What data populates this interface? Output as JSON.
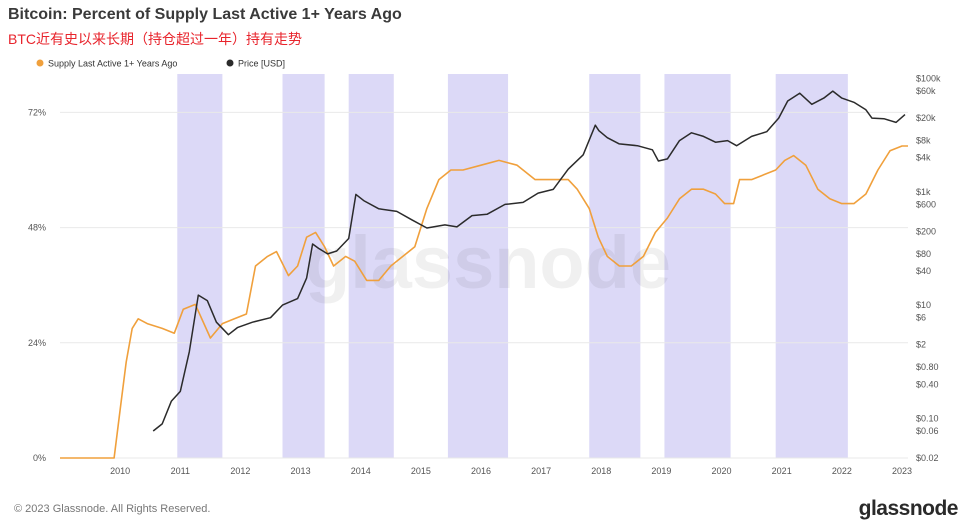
{
  "title": "Bitcoin: Percent of Supply Last Active 1+ Years Ago",
  "subtitle": "BTC近有史以来长期（持仓超过一年）持有走势",
  "footer": "© 2023 Glassnode. All Rights Reserved.",
  "brand": "glassnode",
  "watermark": "glassnode",
  "colors": {
    "supply": "#f0a03c",
    "price": "#2b2b2b",
    "band": "#dcd9f7",
    "grid": "#e9e9e9"
  },
  "chart_data": {
    "type": "line",
    "title": "Bitcoin: Percent of Supply Last Active 1+ Years Ago",
    "x_ticks": [
      "2010",
      "2011",
      "2012",
      "2013",
      "2014",
      "2015",
      "2016",
      "2017",
      "2018",
      "2019",
      "2020",
      "2021",
      "2022",
      "2023"
    ],
    "x_range": [
      2009.0,
      2023.1
    ],
    "y_left": {
      "ticks": [
        "0%",
        "24%",
        "48%",
        "72%"
      ],
      "tick_values": [
        0,
        24,
        48,
        72
      ],
      "range": [
        0,
        80
      ]
    },
    "y_right": {
      "scale": "log",
      "ticks": [
        "$0.02",
        "$0.06",
        "$0.10",
        "$0.40",
        "$0.80",
        "$2",
        "$6",
        "$10",
        "$40",
        "$80",
        "$200",
        "$600",
        "$1k",
        "$4k",
        "$8k",
        "$20k",
        "$60k",
        "$100k"
      ],
      "tick_values": [
        0.02,
        0.06,
        0.1,
        0.4,
        0.8,
        2,
        6,
        10,
        40,
        80,
        200,
        600,
        1000,
        4000,
        8000,
        20000,
        60000,
        100000
      ],
      "range": [
        0.02,
        120000
      ]
    },
    "bands": [
      [
        2010.95,
        2011.7
      ],
      [
        2012.7,
        2013.4
      ],
      [
        2013.8,
        2014.55
      ],
      [
        2015.45,
        2016.45
      ],
      [
        2017.8,
        2018.65
      ],
      [
        2019.05,
        2020.15
      ],
      [
        2020.9,
        2022.1
      ]
    ],
    "legend": [
      "Supply Last Active 1+ Years Ago",
      "Price [USD]"
    ],
    "legend_position": "top-left",
    "grid": "horizontal",
    "series": [
      {
        "name": "Supply Last Active 1+ Years Ago",
        "axis": "left",
        "x": [
          2009.0,
          2009.9,
          2010.0,
          2010.1,
          2010.2,
          2010.3,
          2010.45,
          2010.7,
          2010.9,
          2011.05,
          2011.25,
          2011.5,
          2011.7,
          2011.9,
          2012.1,
          2012.25,
          2012.45,
          2012.6,
          2012.8,
          2012.95,
          2013.1,
          2013.25,
          2013.4,
          2013.55,
          2013.75,
          2013.9,
          2014.1,
          2014.3,
          2014.5,
          2014.7,
          2014.9,
          2015.1,
          2015.3,
          2015.5,
          2015.7,
          2016.0,
          2016.3,
          2016.6,
          2016.9,
          2017.2,
          2017.45,
          2017.6,
          2017.8,
          2017.95,
          2018.1,
          2018.3,
          2018.5,
          2018.7,
          2018.9,
          2019.1,
          2019.3,
          2019.5,
          2019.7,
          2019.9,
          2020.05,
          2020.2,
          2020.3,
          2020.5,
          2020.7,
          2020.9,
          2021.05,
          2021.2,
          2021.4,
          2021.6,
          2021.8,
          2022.0,
          2022.2,
          2022.4,
          2022.6,
          2022.8,
          2023.0,
          2023.1
        ],
        "y": [
          0,
          0,
          10,
          20,
          27,
          29,
          28,
          27,
          26,
          31,
          32,
          25,
          28,
          29,
          30,
          40,
          42,
          43,
          38,
          40,
          46,
          47,
          44,
          40,
          42,
          41,
          37,
          37,
          40,
          42,
          44,
          52,
          58,
          60,
          60,
          61,
          62,
          61,
          58,
          58,
          58,
          56,
          52,
          46,
          42,
          40,
          40,
          42,
          47,
          50,
          54,
          56,
          56,
          55,
          53,
          53,
          58,
          58,
          59,
          60,
          62,
          63,
          61,
          56,
          54,
          53,
          53,
          55,
          60,
          64,
          65,
          65
        ]
      },
      {
        "name": "Price [USD]",
        "axis": "right",
        "x": [
          2010.55,
          2010.7,
          2010.85,
          2011.0,
          2011.15,
          2011.3,
          2011.45,
          2011.6,
          2011.8,
          2011.95,
          2012.2,
          2012.5,
          2012.7,
          2012.95,
          2013.1,
          2013.2,
          2013.3,
          2013.45,
          2013.6,
          2013.8,
          2013.92,
          2014.05,
          2014.3,
          2014.6,
          2014.85,
          2015.1,
          2015.4,
          2015.6,
          2015.85,
          2016.1,
          2016.4,
          2016.7,
          2016.95,
          2017.2,
          2017.45,
          2017.7,
          2017.9,
          2017.96,
          2018.1,
          2018.3,
          2018.6,
          2018.85,
          2018.95,
          2019.1,
          2019.3,
          2019.5,
          2019.7,
          2019.9,
          2020.1,
          2020.25,
          2020.5,
          2020.75,
          2020.95,
          2021.1,
          2021.3,
          2021.5,
          2021.7,
          2021.85,
          2022.0,
          2022.2,
          2022.4,
          2022.5,
          2022.7,
          2022.9,
          2023.05
        ],
        "y": [
          0.06,
          0.08,
          0.2,
          0.3,
          1.5,
          15,
          12,
          5,
          3,
          4,
          5,
          6,
          10,
          13,
          30,
          120,
          100,
          80,
          90,
          150,
          900,
          700,
          500,
          450,
          320,
          230,
          260,
          240,
          380,
          400,
          600,
          650,
          950,
          1100,
          2500,
          4500,
          15000,
          12000,
          9000,
          7000,
          6500,
          5500,
          3500,
          3800,
          8000,
          11000,
          9500,
          7500,
          8000,
          6500,
          9500,
          11500,
          20000,
          40000,
          55000,
          35000,
          45000,
          60000,
          45000,
          38000,
          28000,
          20000,
          19500,
          16800,
          23000
        ]
      }
    ]
  }
}
